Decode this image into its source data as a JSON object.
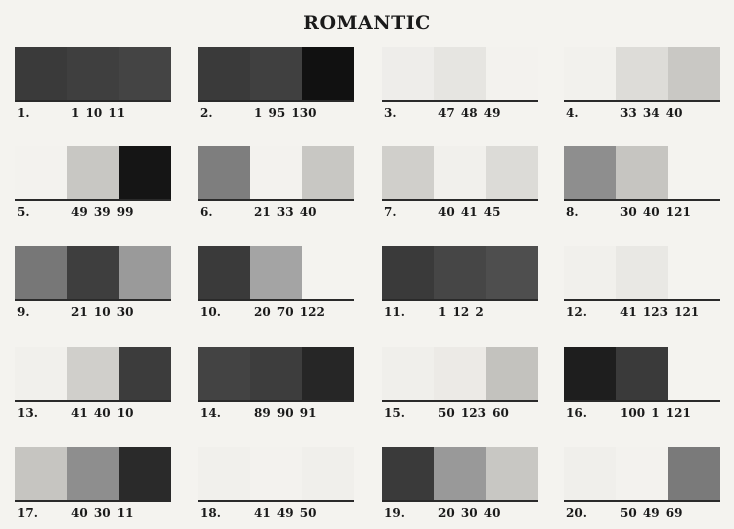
{
  "title": "ROMANTIC",
  "items": [
    {
      "num": "1.",
      "codes": "1 10 11",
      "swatches": [
        "#3a3a3a",
        "#3f3f3f",
        "#444444"
      ]
    },
    {
      "num": "2.",
      "codes": "1 95 130",
      "swatches": [
        "#3a3a3a",
        "#404040",
        "#111111"
      ]
    },
    {
      "num": "3.",
      "codes": "47 48 49",
      "swatches": [
        "#eeedea",
        "#e6e5e1",
        "#f3f2ee"
      ]
    },
    {
      "num": "4.",
      "codes": "33 34 40",
      "swatches": [
        "#f2f1ed",
        "#dddcd8",
        "#c9c8c4"
      ]
    },
    {
      "num": "5.",
      "codes": "49 39 99",
      "swatches": [
        "#f3f2ee",
        "#c8c7c3",
        "#151515"
      ]
    },
    {
      "num": "6.",
      "codes": "21 33 40",
      "swatches": [
        "#7e7e7e",
        "#f3f2ee",
        "#c8c7c3"
      ]
    },
    {
      "num": "7.",
      "codes": "40 41 45",
      "swatches": [
        "#d0cfcb",
        "#f1f0ec",
        "#dcdbd7"
      ]
    },
    {
      "num": "8.",
      "codes": "30 40 121",
      "swatches": [
        "#8e8e8e",
        "#c6c5c1",
        "#f4f3ef"
      ]
    },
    {
      "num": "9.",
      "codes": "21 10 30",
      "swatches": [
        "#777777",
        "#3e3e3e",
        "#9a9a9a"
      ]
    },
    {
      "num": "10.",
      "codes": "20 70 122",
      "swatches": [
        "#3a3a3a",
        "#a4a4a4",
        "#f4f3ef"
      ]
    },
    {
      "num": "11.",
      "codes": "1 12 2",
      "swatches": [
        "#3a3a3a",
        "#464646",
        "#4e4e4e"
      ]
    },
    {
      "num": "12.",
      "codes": "41 123 121",
      "swatches": [
        "#f1f0ec",
        "#e9e8e4",
        "#f4f3ef"
      ]
    },
    {
      "num": "13.",
      "codes": "41 40 10",
      "swatches": [
        "#f1f0ec",
        "#d0cfcb",
        "#3c3c3c"
      ]
    },
    {
      "num": "14.",
      "codes": "89 90 91",
      "swatches": [
        "#434343",
        "#3d3d3d",
        "#262626"
      ]
    },
    {
      "num": "15.",
      "codes": "50 123 60",
      "swatches": [
        "#f0efeb",
        "#eceae6",
        "#c3c2be"
      ]
    },
    {
      "num": "16.",
      "codes": "100 1 121",
      "swatches": [
        "#1e1e1e",
        "#3a3a3a",
        "#f4f3ef"
      ]
    },
    {
      "num": "17.",
      "codes": "40 30 11",
      "swatches": [
        "#c6c5c1",
        "#8e8e8e",
        "#2a2a2a"
      ]
    },
    {
      "num": "18.",
      "codes": "41 49 50",
      "swatches": [
        "#f1f0ec",
        "#f3f2ee",
        "#f0efeb"
      ]
    },
    {
      "num": "19.",
      "codes": "20 30 40",
      "swatches": [
        "#3a3a3a",
        "#999999",
        "#c8c7c3"
      ]
    },
    {
      "num": "20.",
      "codes": "50 49 69",
      "swatches": [
        "#f0efeb",
        "#f3f2ee",
        "#7a7a7a"
      ]
    }
  ]
}
